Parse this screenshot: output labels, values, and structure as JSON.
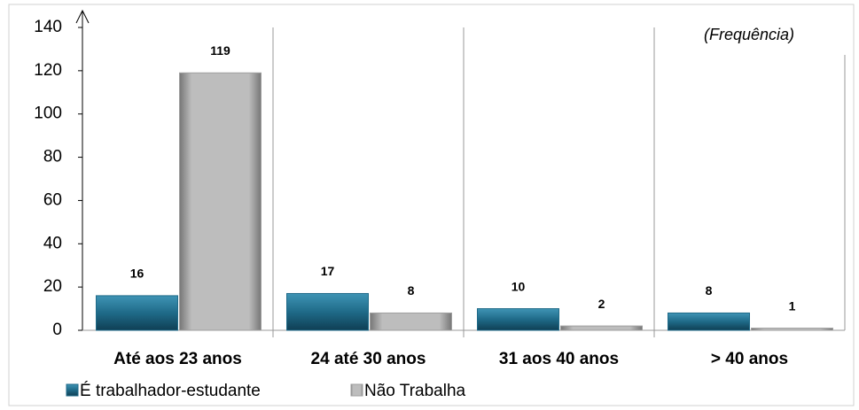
{
  "chart_data": {
    "type": "bar",
    "annotation": "(Frequência)",
    "categories": [
      "Até aos 23 anos",
      "24 até 30 anos",
      "31 aos 40 anos",
      "> 40 anos"
    ],
    "series": [
      {
        "name": "É trabalhador-estudante",
        "color": "#1f6a88",
        "values": [
          16,
          17,
          10,
          8
        ]
      },
      {
        "name": "Não Trabalha",
        "color": "#9e9e9e",
        "values": [
          119,
          8,
          2,
          1
        ]
      }
    ],
    "ylim": [
      0,
      140
    ],
    "yticks": [
      0,
      20,
      40,
      60,
      80,
      100,
      120,
      140
    ],
    "grid": false,
    "legend": "bottom-left"
  }
}
